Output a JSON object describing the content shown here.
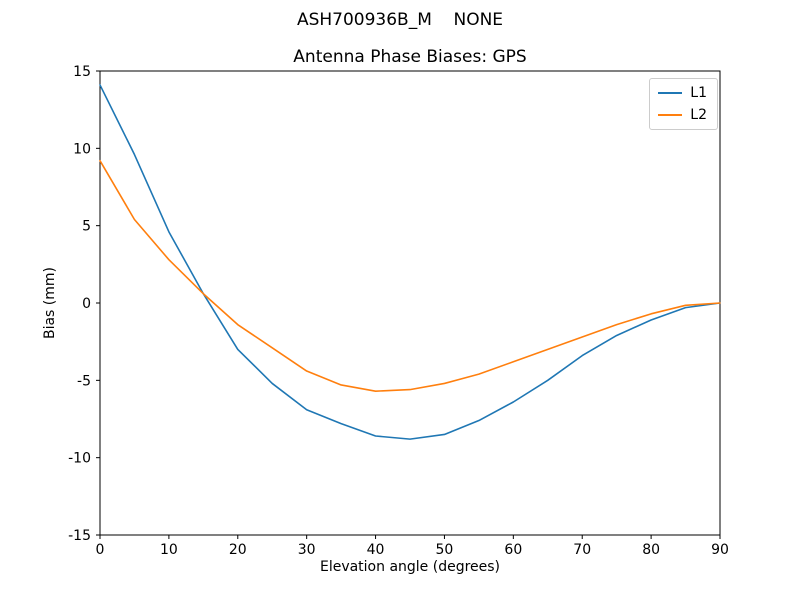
{
  "chart_data": {
    "type": "line",
    "suptitle": "ASH700936B_M    NONE",
    "title": "Antenna Phase Biases: GPS",
    "xlabel": "Elevation angle (degrees)",
    "ylabel": "Bias (mm)",
    "xlim": [
      0,
      90
    ],
    "ylim": [
      -15,
      15
    ],
    "xticks": [
      0,
      10,
      20,
      30,
      40,
      50,
      60,
      70,
      80,
      90
    ],
    "yticks": [
      -15,
      -10,
      -5,
      0,
      5,
      10,
      15
    ],
    "grid": false,
    "legend_position": "upper right",
    "x": [
      0,
      5,
      10,
      15,
      20,
      25,
      30,
      35,
      40,
      45,
      50,
      55,
      60,
      65,
      70,
      75,
      80,
      85,
      90
    ],
    "series": [
      {
        "name": "L1",
        "color": "#1f77b4",
        "values": [
          14.1,
          9.6,
          4.6,
          0.6,
          -3.0,
          -5.2,
          -6.9,
          -7.8,
          -8.6,
          -8.8,
          -8.5,
          -7.6,
          -6.4,
          -5.0,
          -3.4,
          -2.1,
          -1.1,
          -0.3,
          0.0
        ]
      },
      {
        "name": "L2",
        "color": "#ff7f0e",
        "values": [
          9.2,
          5.4,
          2.8,
          0.6,
          -1.4,
          -2.9,
          -4.4,
          -5.3,
          -5.7,
          -5.6,
          -5.2,
          -4.6,
          -3.8,
          -3.0,
          -2.2,
          -1.4,
          -0.7,
          -0.15,
          0.0
        ]
      }
    ]
  }
}
